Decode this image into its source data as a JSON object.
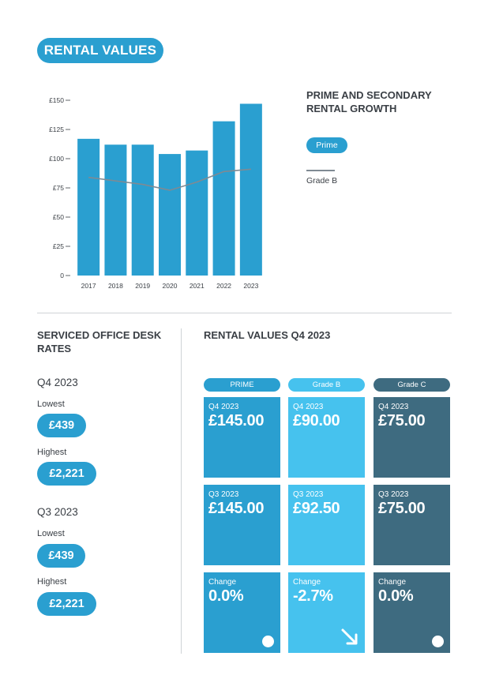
{
  "header": {
    "title": "RENTAL VALUES"
  },
  "legend": {
    "title": "PRIME AND SECONDARY RENTAL GROWTH",
    "prime_label": "Prime",
    "gradeb_label": "Grade B"
  },
  "chart_data": {
    "type": "bar",
    "title": "PRIME AND SECONDARY RENTAL GROWTH",
    "categories": [
      "2017",
      "2018",
      "2019",
      "2020",
      "2021",
      "2022",
      "2023"
    ],
    "series": [
      {
        "name": "Prime",
        "type": "bar",
        "values": [
          117,
          112,
          112,
          104,
          107,
          132,
          147
        ]
      },
      {
        "name": "Grade B",
        "type": "line",
        "values": [
          84,
          81,
          78,
          73,
          80,
          89,
          91
        ]
      }
    ],
    "yticks": [
      0,
      25,
      50,
      75,
      100,
      125,
      150
    ],
    "ytick_labels": [
      "0",
      "£25",
      "£50",
      "£75",
      "£100",
      "£125",
      "£150"
    ],
    "ylim": [
      0,
      150
    ],
    "xlabel": "",
    "ylabel": "",
    "colors": {
      "Prime": "#2a9fd0",
      "Grade B": "#7f8a93"
    }
  },
  "desk": {
    "title": "SERVICED OFFICE DESK RATES",
    "q4": {
      "period": "Q4 2023",
      "lowest_label": "Lowest",
      "lowest": "£439",
      "highest_label": "Highest",
      "highest": "£2,221"
    },
    "q3": {
      "period": "Q3 2023",
      "lowest_label": "Lowest",
      "lowest": "£439",
      "highest_label": "Highest",
      "highest": "£2,221"
    }
  },
  "rv": {
    "title": "RENTAL VALUES Q4 2023",
    "columns": [
      {
        "header": "PRIME",
        "q4_label": "Q4 2023",
        "q4": "£145.00",
        "q3_label": "Q3 2023",
        "q3": "£145.00",
        "change_label": "Change",
        "change": "0.0%",
        "trend": "flat"
      },
      {
        "header": "Grade B",
        "q4_label": "Q4 2023",
        "q4": "£90.00",
        "q3_label": "Q3 2023",
        "q3": "£92.50",
        "change_label": "Change",
        "change": "-2.7%",
        "trend": "down"
      },
      {
        "header": "Grade C",
        "q4_label": "Q4 2023",
        "q4": "£75.00",
        "q3_label": "Q3 2023",
        "q3": "£75.00",
        "change_label": "Change",
        "change": "0.0%",
        "trend": "flat"
      }
    ]
  },
  "colors": {
    "prime": "#2a9fd0",
    "gradeb": "#46c2ee",
    "gradec": "#3e6b80",
    "text": "#3a3f45"
  }
}
